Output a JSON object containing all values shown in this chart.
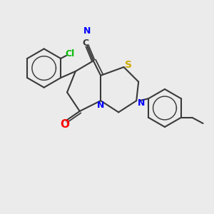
{
  "bg_color": "#ebebeb",
  "bond_color": "#3a3a3a",
  "bond_width": 1.5,
  "atom_colors": {
    "N": "#0000ff",
    "S": "#ccaa00",
    "O": "#ff0000",
    "Cl": "#00bb00",
    "C": "#3a3a3a"
  },
  "font_size": 9,
  "fig_size": [
    3.0,
    3.0
  ],
  "dpi": 100,
  "xlim": [
    0,
    10
  ],
  "ylim": [
    0,
    10
  ]
}
